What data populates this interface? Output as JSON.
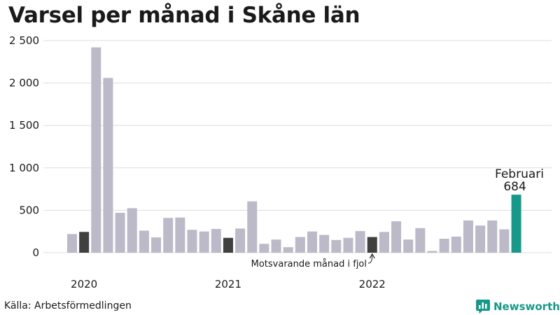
{
  "title": "Varsel per månad i Skåne län",
  "source": "Källa: Arbetsförmedlingen",
  "brand": {
    "name": "Newsworthy",
    "icon": "newsworthy-logo-icon"
  },
  "colors": {
    "default": "#bcbac8",
    "same_month": "#404040",
    "current": "#17998a",
    "grid": "#dddddd",
    "brand": "#17998a"
  },
  "chart_data": {
    "type": "bar",
    "title": "Varsel per månad i Skåne län",
    "ylim": [
      0,
      2500
    ],
    "y_ticks": [
      0,
      500,
      1000,
      1500,
      2000,
      2500
    ],
    "y_tick_labels": [
      "0",
      "500",
      "1 000",
      "1 500",
      "2 000",
      "2 500"
    ],
    "x_labels": [
      {
        "index": 1,
        "label": "2020"
      },
      {
        "index": 13,
        "label": "2021"
      },
      {
        "index": 25,
        "label": "2022"
      }
    ],
    "grid": true,
    "values": [
      220,
      245,
      2420,
      2060,
      470,
      525,
      260,
      180,
      410,
      415,
      270,
      250,
      280,
      175,
      285,
      605,
      105,
      155,
      65,
      185,
      250,
      210,
      150,
      175,
      255,
      185,
      245,
      370,
      155,
      290,
      20,
      165,
      190,
      380,
      320,
      380,
      275,
      684
    ],
    "highlight_same_month": [
      1,
      13,
      25
    ],
    "highlight_current": 37,
    "annotations": [
      {
        "name": "current-label",
        "bar": 37,
        "lines": [
          "Februari",
          "684"
        ]
      },
      {
        "name": "same-month-label",
        "bar": 25,
        "text": "Motsvarande månad i fjol"
      }
    ]
  }
}
